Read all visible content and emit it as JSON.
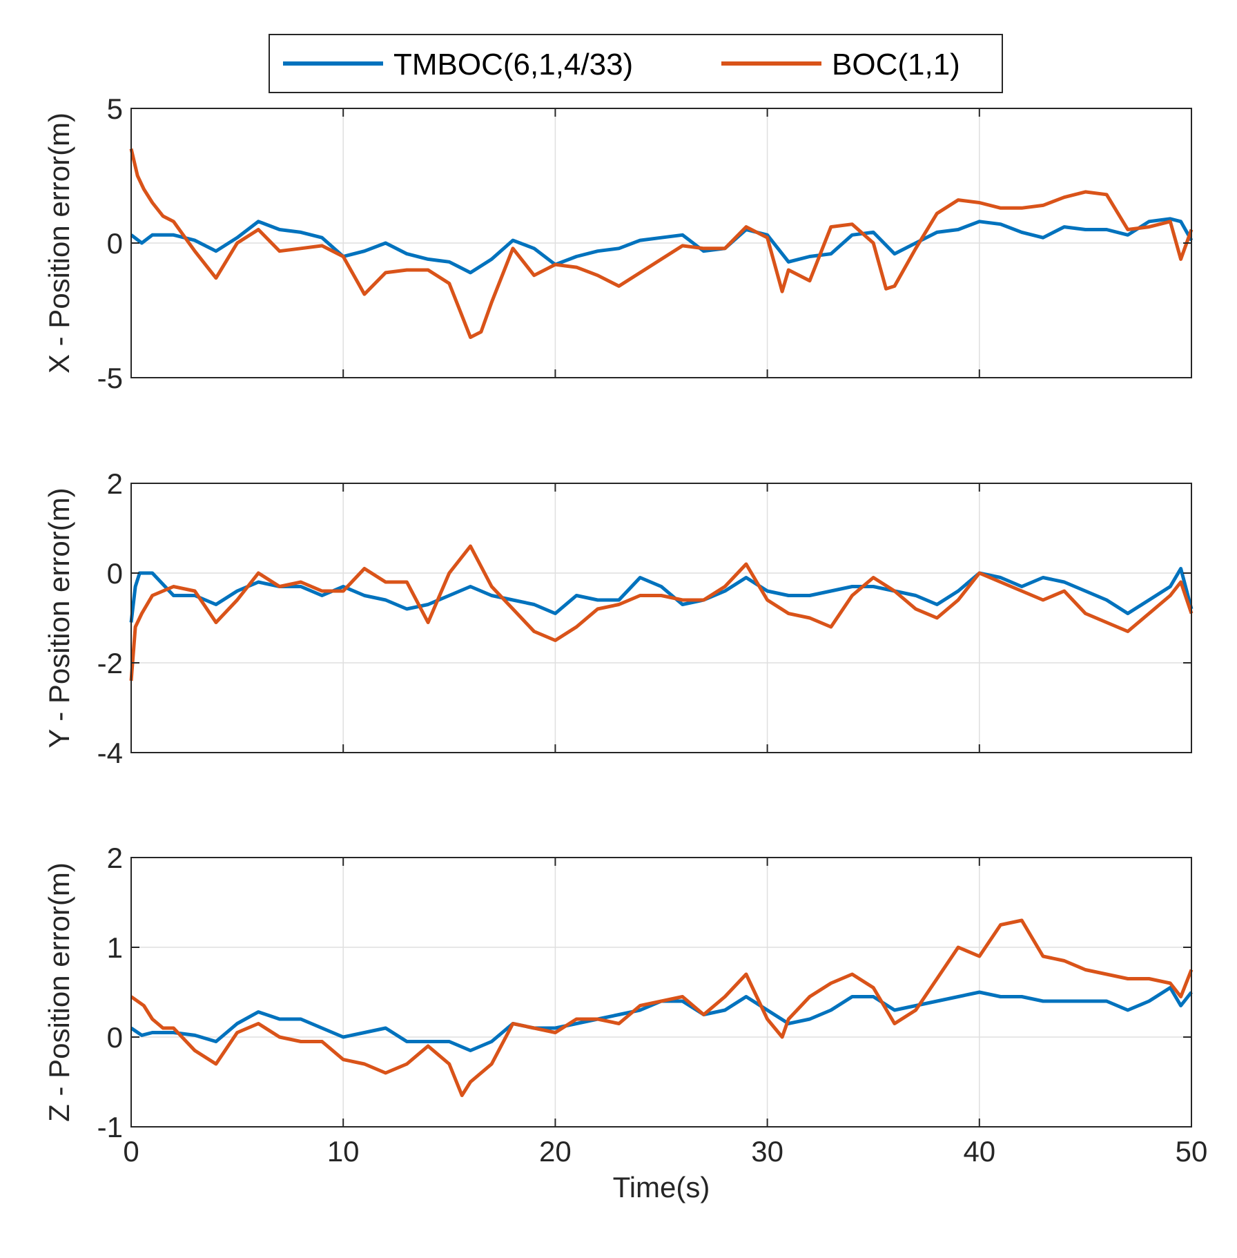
{
  "legend": {
    "placement": "top-center",
    "entries": [
      {
        "name": "TMBOC(6,1,4/33)",
        "color": "#0072BD"
      },
      {
        "name": "BOC(1,1)",
        "color": "#D95319"
      }
    ]
  },
  "chart_data": [
    {
      "type": "line",
      "ylabel": "X - Position error(m)",
      "xlabel": "",
      "xlim": [
        0,
        50
      ],
      "ylim": [
        -5,
        5
      ],
      "xticks": [
        0,
        10,
        20,
        30,
        40,
        50
      ],
      "yticks": [
        -5,
        0,
        5
      ],
      "ytick_labels": [
        "-5",
        "0",
        "5"
      ],
      "xtick_labels": [],
      "grid": true,
      "series": [
        {
          "name": "TMBOC(6,1,4/33)",
          "color": "#0072BD",
          "x": [
            0,
            0.5,
            1,
            2,
            3,
            4,
            5,
            6,
            7,
            8,
            9,
            10,
            11,
            12,
            13,
            14,
            15,
            16,
            17,
            18,
            19,
            20,
            21,
            22,
            23,
            24,
            25,
            26,
            27,
            28,
            29,
            30,
            31,
            32,
            33,
            34,
            35,
            36,
            37,
            38,
            39,
            40,
            41,
            42,
            43,
            44,
            45,
            46,
            47,
            48,
            49,
            49.5,
            50
          ],
          "y": [
            0.3,
            0.0,
            0.3,
            0.3,
            0.1,
            -0.3,
            0.2,
            0.8,
            0.5,
            0.4,
            0.2,
            -0.5,
            -0.3,
            0.0,
            -0.4,
            -0.6,
            -0.7,
            -1.1,
            -0.6,
            0.1,
            -0.2,
            -0.8,
            -0.5,
            -0.3,
            -0.2,
            0.1,
            0.2,
            0.3,
            -0.3,
            -0.2,
            0.5,
            0.3,
            -0.7,
            -0.5,
            -0.4,
            0.3,
            0.4,
            -0.4,
            0.0,
            0.4,
            0.5,
            0.8,
            0.7,
            0.4,
            0.2,
            0.6,
            0.5,
            0.5,
            0.3,
            0.8,
            0.9,
            0.8,
            0.1
          ]
        },
        {
          "name": "BOC(1,1)",
          "color": "#D95319",
          "x": [
            0,
            0.3,
            0.6,
            1,
            1.5,
            2,
            3,
            4,
            5,
            6,
            7,
            8,
            9,
            10,
            11,
            12,
            13,
            14,
            15,
            15.5,
            16,
            16.5,
            17,
            18,
            19,
            20,
            21,
            22,
            23,
            24,
            25,
            26,
            27,
            28,
            29,
            30,
            30.7,
            31,
            32,
            33,
            34,
            35,
            35.6,
            36,
            37,
            38,
            39,
            40,
            41,
            42,
            43,
            44,
            45,
            46,
            47,
            48,
            49,
            49.5,
            50
          ],
          "y": [
            3.5,
            2.5,
            2.0,
            1.5,
            1.0,
            0.8,
            -0.3,
            -1.3,
            0.0,
            0.5,
            -0.3,
            -0.2,
            -0.1,
            -0.5,
            -1.9,
            -1.1,
            -1.0,
            -1.0,
            -1.5,
            -2.5,
            -3.5,
            -3.3,
            -2.2,
            -0.2,
            -1.2,
            -0.8,
            -0.9,
            -1.2,
            -1.6,
            -1.1,
            -0.6,
            -0.1,
            -0.2,
            -0.2,
            0.6,
            0.2,
            -1.8,
            -1.0,
            -1.4,
            0.6,
            0.7,
            0.0,
            -1.7,
            -1.6,
            -0.2,
            1.1,
            1.6,
            1.5,
            1.3,
            1.3,
            1.4,
            1.7,
            1.9,
            1.8,
            0.5,
            0.6,
            0.8,
            -0.6,
            0.5
          ]
        }
      ]
    },
    {
      "type": "line",
      "ylabel": "Y - Position error(m)",
      "xlabel": "",
      "xlim": [
        0,
        50
      ],
      "ylim": [
        -4,
        2
      ],
      "xticks": [
        0,
        10,
        20,
        30,
        40,
        50
      ],
      "yticks": [
        -4,
        -2,
        0,
        2
      ],
      "ytick_labels": [
        "-4",
        "-2",
        "0",
        "2"
      ],
      "xtick_labels": [],
      "grid": true,
      "series": [
        {
          "name": "TMBOC(6,1,4/33)",
          "color": "#0072BD",
          "x": [
            0,
            0.2,
            0.4,
            1,
            2,
            3,
            4,
            5,
            6,
            7,
            8,
            9,
            10,
            11,
            12,
            13,
            14,
            15,
            16,
            17,
            18,
            19,
            20,
            21,
            22,
            23,
            24,
            25,
            26,
            27,
            28,
            29,
            30,
            31,
            32,
            33,
            34,
            35,
            36,
            37,
            38,
            39,
            40,
            41,
            42,
            43,
            44,
            45,
            46,
            47,
            48,
            49,
            49.5,
            50
          ],
          "y": [
            -1.1,
            -0.3,
            0.0,
            0.0,
            -0.5,
            -0.5,
            -0.7,
            -0.4,
            -0.2,
            -0.3,
            -0.3,
            -0.5,
            -0.3,
            -0.5,
            -0.6,
            -0.8,
            -0.7,
            -0.5,
            -0.3,
            -0.5,
            -0.6,
            -0.7,
            -0.9,
            -0.5,
            -0.6,
            -0.6,
            -0.1,
            -0.3,
            -0.7,
            -0.6,
            -0.4,
            -0.1,
            -0.4,
            -0.5,
            -0.5,
            -0.4,
            -0.3,
            -0.3,
            -0.4,
            -0.5,
            -0.7,
            -0.4,
            0.0,
            -0.1,
            -0.3,
            -0.1,
            -0.2,
            -0.4,
            -0.6,
            -0.9,
            -0.6,
            -0.3,
            0.1,
            -0.8
          ]
        },
        {
          "name": "BOC(1,1)",
          "color": "#D95319",
          "x": [
            0,
            0.2,
            0.5,
            1,
            2,
            3,
            4,
            5,
            6,
            7,
            8,
            9,
            10,
            11,
            12,
            13,
            14,
            15,
            16,
            17,
            18,
            19,
            20,
            21,
            22,
            23,
            24,
            25,
            26,
            27,
            28,
            29,
            30,
            31,
            32,
            33,
            34,
            35,
            36,
            37,
            38,
            39,
            40,
            41,
            42,
            43,
            44,
            45,
            46,
            47,
            48,
            49,
            49.5,
            50
          ],
          "y": [
            -2.4,
            -1.2,
            -0.9,
            -0.5,
            -0.3,
            -0.4,
            -1.1,
            -0.6,
            0.0,
            -0.3,
            -0.2,
            -0.4,
            -0.4,
            0.1,
            -0.2,
            -0.2,
            -1.1,
            0.0,
            0.6,
            -0.3,
            -0.8,
            -1.3,
            -1.5,
            -1.2,
            -0.8,
            -0.7,
            -0.5,
            -0.5,
            -0.6,
            -0.6,
            -0.3,
            0.2,
            -0.6,
            -0.9,
            -1.0,
            -1.2,
            -0.5,
            -0.1,
            -0.4,
            -0.8,
            -1.0,
            -0.6,
            0.0,
            -0.2,
            -0.4,
            -0.6,
            -0.4,
            -0.9,
            -1.1,
            -1.3,
            -0.9,
            -0.5,
            -0.2,
            -0.9
          ]
        }
      ]
    },
    {
      "type": "line",
      "ylabel": "Z - Position error(m)",
      "xlabel": "Time(s)",
      "xlim": [
        0,
        50
      ],
      "ylim": [
        -1,
        2
      ],
      "xticks": [
        0,
        10,
        20,
        30,
        40,
        50
      ],
      "yticks": [
        -1,
        0,
        1,
        2
      ],
      "ytick_labels": [
        "-1",
        "0",
        "1",
        "2"
      ],
      "xtick_labels": [
        "0",
        "10",
        "20",
        "30",
        "40",
        "50"
      ],
      "grid": true,
      "series": [
        {
          "name": "TMBOC(6,1,4/33)",
          "color": "#0072BD",
          "x": [
            0,
            0.5,
            1,
            2,
            3,
            4,
            5,
            6,
            7,
            8,
            9,
            10,
            11,
            12,
            13,
            14,
            15,
            16,
            17,
            18,
            19,
            20,
            21,
            22,
            23,
            24,
            25,
            26,
            27,
            28,
            29,
            30,
            31,
            32,
            33,
            34,
            35,
            36,
            37,
            38,
            39,
            40,
            41,
            42,
            43,
            44,
            45,
            46,
            47,
            48,
            49,
            49.5,
            50
          ],
          "y": [
            0.1,
            0.02,
            0.05,
            0.05,
            0.02,
            -0.05,
            0.15,
            0.28,
            0.2,
            0.2,
            0.1,
            0.0,
            0.05,
            0.1,
            -0.05,
            -0.05,
            -0.05,
            -0.15,
            -0.05,
            0.15,
            0.1,
            0.1,
            0.15,
            0.2,
            0.25,
            0.3,
            0.4,
            0.4,
            0.25,
            0.3,
            0.45,
            0.3,
            0.15,
            0.2,
            0.3,
            0.45,
            0.45,
            0.3,
            0.35,
            0.4,
            0.45,
            0.5,
            0.45,
            0.45,
            0.4,
            0.4,
            0.4,
            0.4,
            0.3,
            0.4,
            0.55,
            0.35,
            0.5
          ]
        },
        {
          "name": "BOC(1,1)",
          "color": "#D95319",
          "x": [
            0,
            0.3,
            0.6,
            1,
            1.5,
            2,
            3,
            4,
            5,
            6,
            7,
            8,
            9,
            10,
            11,
            12,
            13,
            14,
            15,
            15.6,
            16,
            17,
            18,
            19,
            20,
            21,
            22,
            23,
            24,
            25,
            26,
            27,
            28,
            29,
            30,
            30.7,
            31,
            32,
            33,
            34,
            35,
            36,
            37,
            38,
            39,
            40,
            41,
            42,
            43,
            44,
            45,
            46,
            47,
            48,
            49,
            49.5,
            50
          ],
          "y": [
            0.45,
            0.4,
            0.35,
            0.2,
            0.1,
            0.1,
            -0.15,
            -0.3,
            0.05,
            0.15,
            0.0,
            -0.05,
            -0.05,
            -0.25,
            -0.3,
            -0.4,
            -0.3,
            -0.1,
            -0.3,
            -0.65,
            -0.5,
            -0.3,
            0.15,
            0.1,
            0.05,
            0.2,
            0.2,
            0.15,
            0.35,
            0.4,
            0.45,
            0.25,
            0.45,
            0.7,
            0.2,
            0.0,
            0.2,
            0.45,
            0.6,
            0.7,
            0.55,
            0.15,
            0.3,
            0.65,
            1.0,
            0.9,
            1.25,
            1.3,
            0.9,
            0.85,
            0.75,
            0.7,
            0.65,
            0.65,
            0.6,
            0.45,
            0.75
          ]
        }
      ]
    }
  ]
}
